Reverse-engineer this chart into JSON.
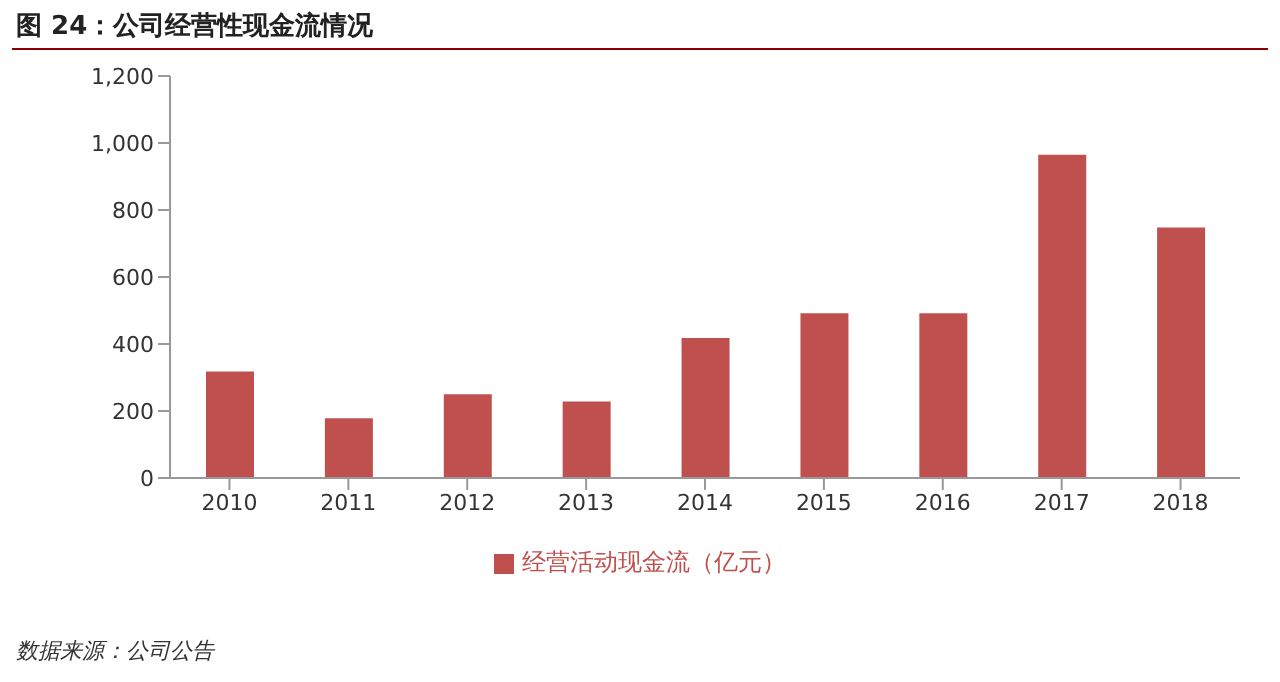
{
  "chart_data": {
    "type": "bar",
    "title": "图 24：公司经营性现金流情况",
    "categories": [
      "2010",
      "2011",
      "2012",
      "2013",
      "2014",
      "2015",
      "2016",
      "2017",
      "2018"
    ],
    "series": [
      {
        "name": "经营活动现金流（亿元）",
        "color": "#c0504d",
        "values": [
          318,
          178,
          250,
          228,
          418,
          492,
          492,
          965,
          748
        ]
      }
    ],
    "ylim": [
      0,
      1200
    ],
    "yticks": [
      0,
      200,
      400,
      600,
      800,
      {
        "value": 1000,
        "label": "1,000"
      },
      {
        "value": 1200,
        "label": "1,200"
      }
    ],
    "grid": false,
    "legend": "bottom",
    "annotations": [
      "数据来源：公司公告"
    ]
  }
}
